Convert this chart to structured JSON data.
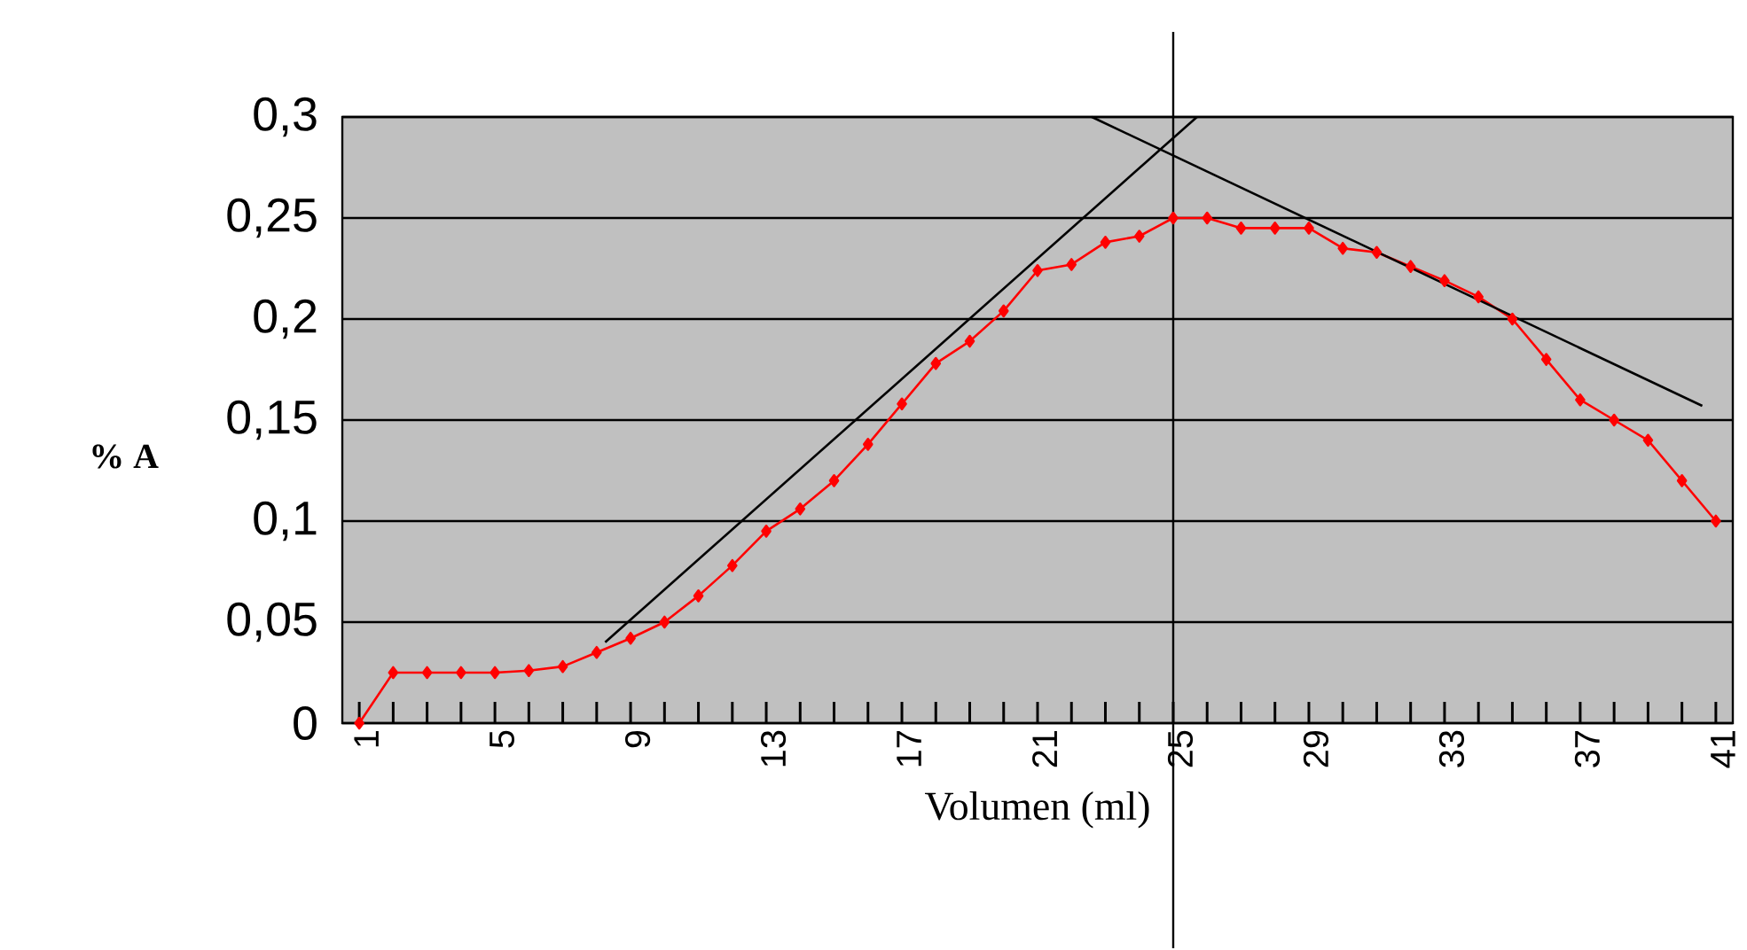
{
  "chart_data": {
    "type": "line",
    "xlabel": "Volumen (ml)",
    "ylabel": "% A",
    "x": [
      1,
      2,
      3,
      4,
      5,
      6,
      7,
      8,
      9,
      10,
      11,
      12,
      13,
      14,
      15,
      16,
      17,
      18,
      19,
      20,
      21,
      22,
      23,
      24,
      25,
      26,
      27,
      28,
      29,
      30,
      31,
      32,
      33,
      34,
      35,
      36,
      37,
      38,
      39,
      40,
      41
    ],
    "xlim": [
      0.5,
      41.5
    ],
    "xticks": [
      1,
      {
        "value": 2,
        "label": null
      },
      {
        "value": 3,
        "label": null
      },
      {
        "value": 4,
        "label": null
      },
      5,
      {
        "value": 6,
        "label": null
      },
      {
        "value": 7,
        "label": null
      },
      {
        "value": 8,
        "label": null
      },
      9,
      {
        "value": 10,
        "label": null
      },
      {
        "value": 11,
        "label": null
      },
      {
        "value": 12,
        "label": null
      },
      13,
      {
        "value": 14,
        "label": null
      },
      {
        "value": 15,
        "label": null
      },
      {
        "value": 16,
        "label": null
      },
      17,
      {
        "value": 18,
        "label": null
      },
      {
        "value": 19,
        "label": null
      },
      {
        "value": 20,
        "label": null
      },
      21,
      {
        "value": 22,
        "label": null
      },
      {
        "value": 23,
        "label": null
      },
      {
        "value": 24,
        "label": null
      },
      25,
      {
        "value": 26,
        "label": null
      },
      {
        "value": 27,
        "label": null
      },
      {
        "value": 28,
        "label": null
      },
      29,
      {
        "value": 30,
        "label": null
      },
      {
        "value": 31,
        "label": null
      },
      {
        "value": 32,
        "label": null
      },
      33,
      {
        "value": 34,
        "label": null
      },
      {
        "value": 35,
        "label": null
      },
      {
        "value": 36,
        "label": null
      },
      37,
      {
        "value": 38,
        "label": null
      },
      {
        "value": 39,
        "label": null
      },
      {
        "value": 40,
        "label": null
      },
      41
    ],
    "ylim": [
      0,
      0.3
    ],
    "yticks": [
      0,
      {
        "value": 0.05,
        "label": "0,05"
      },
      {
        "value": 0.1,
        "label": "0,1"
      },
      {
        "value": 0.15,
        "label": "0,15"
      },
      {
        "value": 0.2,
        "label": "0,2"
      },
      {
        "value": 0.25,
        "label": "0,25"
      },
      {
        "value": 0.3,
        "label": "0,3"
      }
    ],
    "grid": "y",
    "marker": "diamond",
    "ref_lines": [
      {
        "axis": "x",
        "value": 25,
        "color": "#000000"
      }
    ],
    "series": [
      {
        "color": "#ff0000",
        "values": [
          0,
          0.025,
          0.025,
          0.025,
          0.025,
          0.026,
          0.028,
          0.035,
          0.042,
          0.05,
          0.063,
          0.078,
          0.095,
          0.106,
          0.12,
          0.138,
          0.158,
          0.178,
          0.189,
          0.204,
          0.224,
          0.227,
          0.238,
          0.241,
          0.25,
          0.25,
          0.245,
          0.245,
          0.245,
          0.235,
          0.233,
          0.226,
          0.219,
          0.211,
          0.2,
          0.18,
          0.16,
          0.15,
          0.14,
          0.12,
          0.1
        ]
      },
      {
        "type": "line",
        "color": "#000000",
        "marker": "none",
        "x": [
          8.25,
          25.7
        ],
        "values": [
          0.04,
          0.3
        ]
      },
      {
        "type": "line",
        "color": "#000000",
        "marker": "none",
        "x": [
          22.6,
          40.6
        ],
        "values": [
          0.3,
          0.157
        ]
      }
    ]
  }
}
